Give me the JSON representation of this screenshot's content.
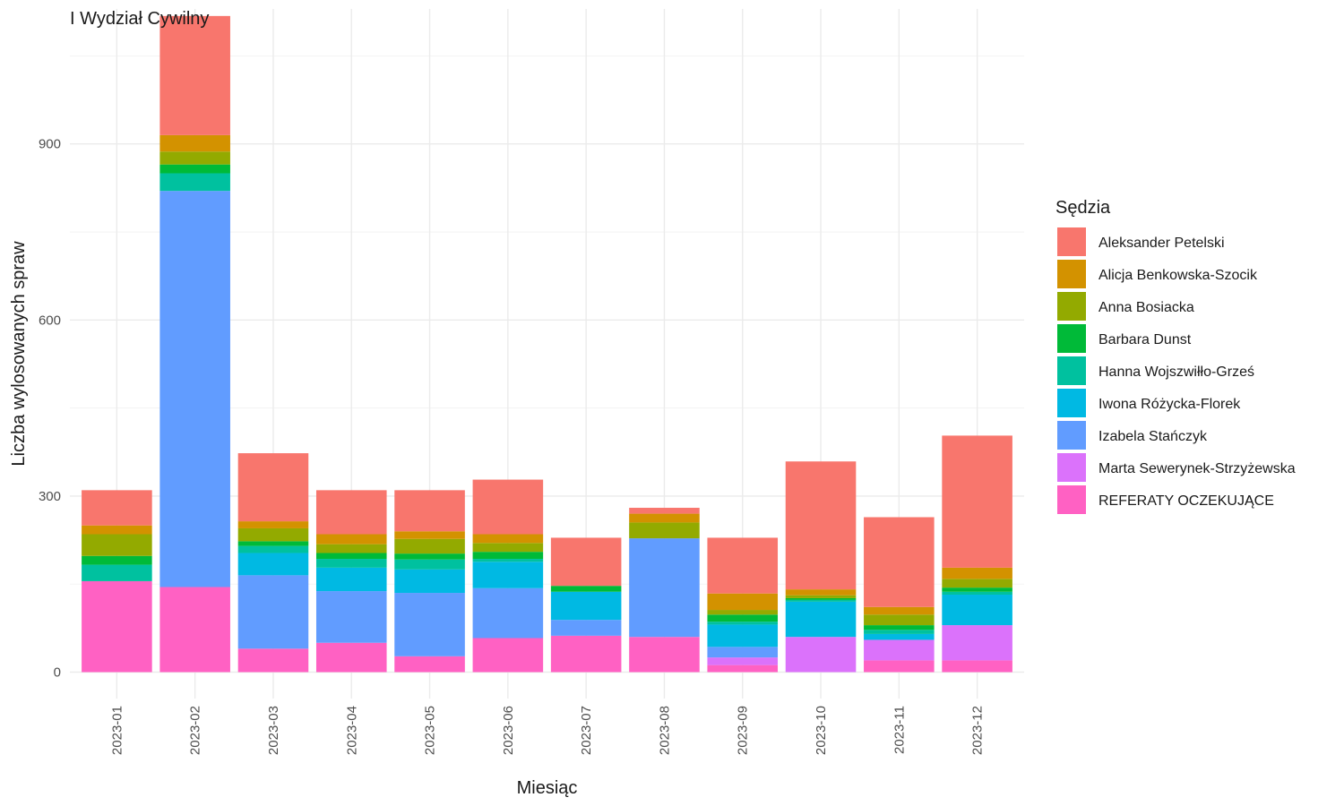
{
  "chart_data": {
    "type": "bar",
    "stacked": true,
    "title": "I Wydział Cywilny",
    "xlabel": "Miesiąc",
    "ylabel": "Liczba wylosowanych spraw",
    "ylim": [
      -45,
      1130
    ],
    "yticks": [
      0,
      300,
      600,
      900
    ],
    "grid": true,
    "legend_title": "Sędzia",
    "legend_position": "right",
    "categories": [
      "2023-01",
      "2023-02",
      "2023-03",
      "2023-04",
      "2023-05",
      "2023-06",
      "2023-07",
      "2023-08",
      "2023-09",
      "2023-10",
      "2023-11",
      "2023-12"
    ],
    "series": [
      {
        "name": "REFERATY OCZEKUJĄCE",
        "color": "#FF61C3",
        "values": [
          155,
          145,
          40,
          50,
          27,
          58,
          62,
          60,
          12,
          0,
          20,
          20
        ]
      },
      {
        "name": "Marta Sewerynek-Strzyżewska",
        "color": "#DB72FB",
        "values": [
          0,
          0,
          0,
          0,
          0,
          0,
          0,
          0,
          13,
          60,
          35,
          60
        ]
      },
      {
        "name": "Izabela Stańczyk",
        "color": "#619CFF",
        "values": [
          0,
          675,
          125,
          88,
          108,
          85,
          27,
          168,
          18,
          0,
          0,
          0
        ]
      },
      {
        "name": "Iwona Różycka-Florek",
        "color": "#00B9E3",
        "values": [
          0,
          0,
          38,
          40,
          40,
          45,
          48,
          0,
          38,
          60,
          10,
          52
        ]
      },
      {
        "name": "Hanna Wojszwiłło-Grześ",
        "color": "#00C19F",
        "values": [
          28,
          30,
          12,
          15,
          17,
          5,
          0,
          0,
          5,
          3,
          7,
          5
        ]
      },
      {
        "name": "Barbara Dunst",
        "color": "#00BA38",
        "values": [
          15,
          15,
          8,
          10,
          10,
          12,
          10,
          0,
          12,
          3,
          8,
          7
        ]
      },
      {
        "name": "Anna Bosiacka",
        "color": "#93AA00",
        "values": [
          37,
          22,
          22,
          15,
          25,
          15,
          0,
          27,
          8,
          5,
          18,
          15
        ]
      },
      {
        "name": "Alicja Benkowska-Szocik",
        "color": "#D39200",
        "values": [
          15,
          28,
          12,
          17,
          13,
          15,
          0,
          15,
          28,
          10,
          13,
          19
        ]
      },
      {
        "name": "Aleksander Petelski",
        "color": "#F8766D",
        "values": [
          60,
          203,
          116,
          75,
          70,
          93,
          82,
          10,
          95,
          218,
          153,
          225
        ]
      }
    ],
    "legend_order": [
      "Aleksander Petelski",
      "Alicja Benkowska-Szocik",
      "Anna Bosiacka",
      "Barbara Dunst",
      "Hanna Wojszwiłło-Grześ",
      "Iwona Różycka-Florek",
      "Izabela Stańczyk",
      "Marta Sewerynek-Strzyżewska",
      "REFERATY OCZEKUJĄCE"
    ]
  }
}
